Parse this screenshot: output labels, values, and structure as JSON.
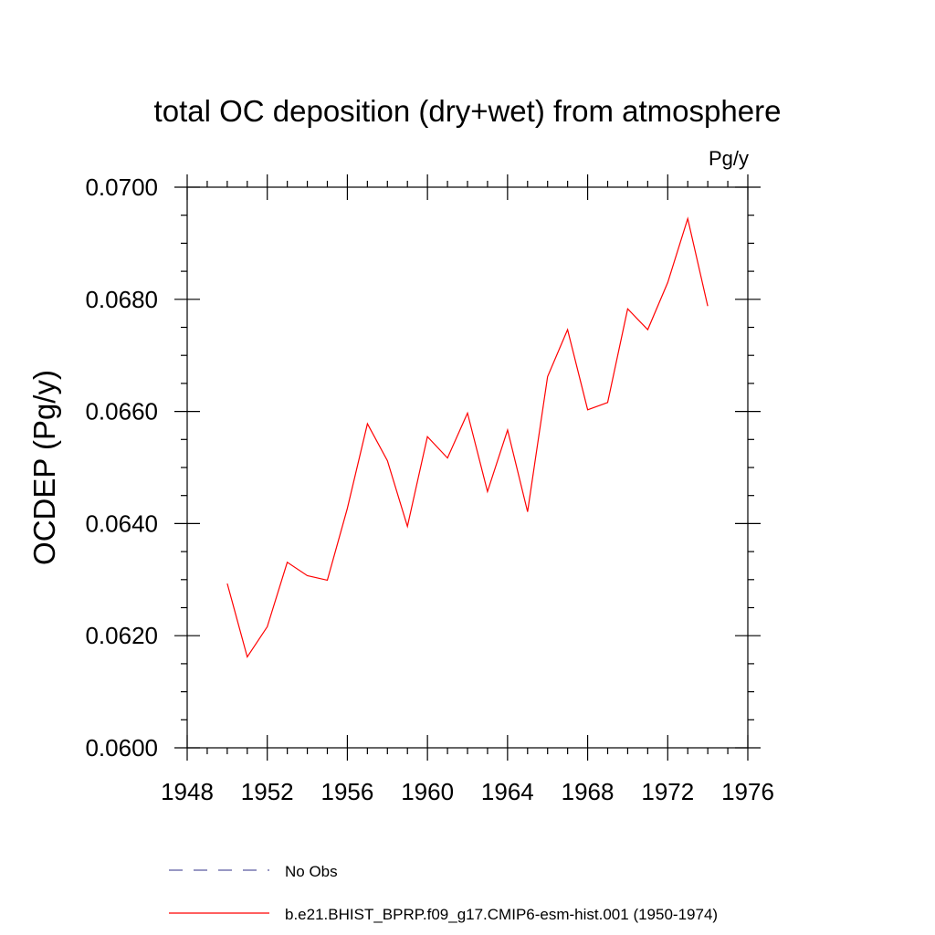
{
  "chart_data": {
    "type": "line",
    "title": "total OC deposition (dry+wet) from atmosphere",
    "units_label": "Pg/y",
    "ylabel": "OCDEP  (Pg/y)",
    "xlabel": "",
    "xlim": [
      1948,
      1976
    ],
    "ylim": [
      0.06,
      0.07
    ],
    "x_ticks": [
      1948,
      1952,
      1956,
      1960,
      1964,
      1968,
      1972,
      1976
    ],
    "x_tick_labels": [
      "1948",
      "1952",
      "1956",
      "1960",
      "1964",
      "1968",
      "1972",
      "1976"
    ],
    "y_ticks": [
      0.06,
      0.062,
      0.064,
      0.066,
      0.068,
      0.07
    ],
    "y_tick_labels": [
      "0.0600",
      "0.0620",
      "0.0640",
      "0.0660",
      "0.0680",
      "0.0700"
    ],
    "grid": false,
    "x": [
      1950,
      1951,
      1952,
      1953,
      1954,
      1955,
      1956,
      1957,
      1958,
      1959,
      1960,
      1961,
      1962,
      1963,
      1964,
      1965,
      1966,
      1967,
      1968,
      1969,
      1970,
      1971,
      1972,
      1973,
      1974
    ],
    "series": [
      {
        "name": "b.e21.BHIST_BPRP.f09_g17.CMIP6-esm-hist.001 (1950-1974)",
        "color": "#ff0000",
        "style": "solid",
        "values": [
          0.06293,
          0.06162,
          0.06216,
          0.06331,
          0.06307,
          0.06299,
          0.06427,
          0.06578,
          0.06512,
          0.06395,
          0.06555,
          0.06517,
          0.06597,
          0.06457,
          0.06567,
          0.06421,
          0.06662,
          0.06746,
          0.06603,
          0.06616,
          0.06783,
          0.06746,
          0.0683,
          0.06944,
          0.06788
        ]
      }
    ],
    "legend": [
      {
        "label": "No Obs",
        "color": "#5a5aa0",
        "style": "dashed"
      },
      {
        "label": "b.e21.BHIST_BPRP.f09_g17.CMIP6-esm-hist.001 (1950-1974)",
        "color": "#ff0000",
        "style": "solid"
      }
    ],
    "legend_position": "bottom"
  }
}
